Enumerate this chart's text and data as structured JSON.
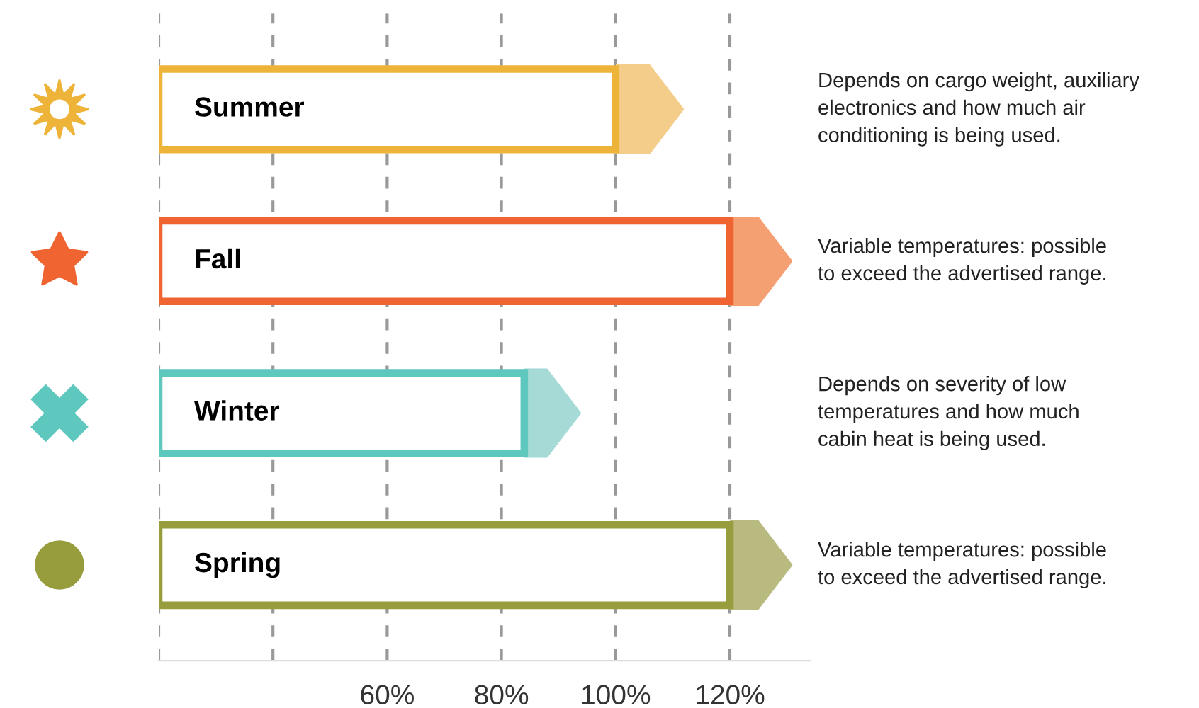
{
  "chart_data": {
    "type": "bar",
    "orientation": "horizontal",
    "categories": [
      "Summer",
      "Fall",
      "Winter",
      "Spring"
    ],
    "series": [
      {
        "colors": [
          "#eeb43a",
          "#ef6430",
          "#5ec7be",
          "#979c3c"
        ],
        "base": [
          20,
          20,
          20,
          20
        ],
        "values": [
          80,
          100,
          64,
          100
        ]
      },
      {
        "colors": [
          "#f4cd8a",
          "#f4a073",
          "#a5dad6",
          "#b8ba7f"
        ],
        "base": [
          100,
          120,
          84,
          120
        ],
        "values": [
          12,
          11,
          10,
          11
        ]
      }
    ],
    "xlim": [
      20,
      134
    ],
    "xticks": [
      {
        "value": 20,
        "label": null
      },
      {
        "value": 40,
        "label": null
      },
      {
        "value": 60,
        "label": "60%"
      },
      {
        "value": 80,
        "label": "80%"
      },
      {
        "value": 100,
        "label": "100%"
      },
      {
        "value": 120,
        "label": "120%"
      }
    ],
    "grid": "x",
    "annotations": [
      "Depends on cargo weight, auxiliary\nelectronics and how much air\nconditioning is being used.",
      "Variable temperatures: possible\nto exceed the advertised range.",
      "Depends on severity of low\ntemperatures and how much\ncabin heat is being used.",
      "Variable temperatures: possible\nto exceed the advertised range."
    ]
  }
}
